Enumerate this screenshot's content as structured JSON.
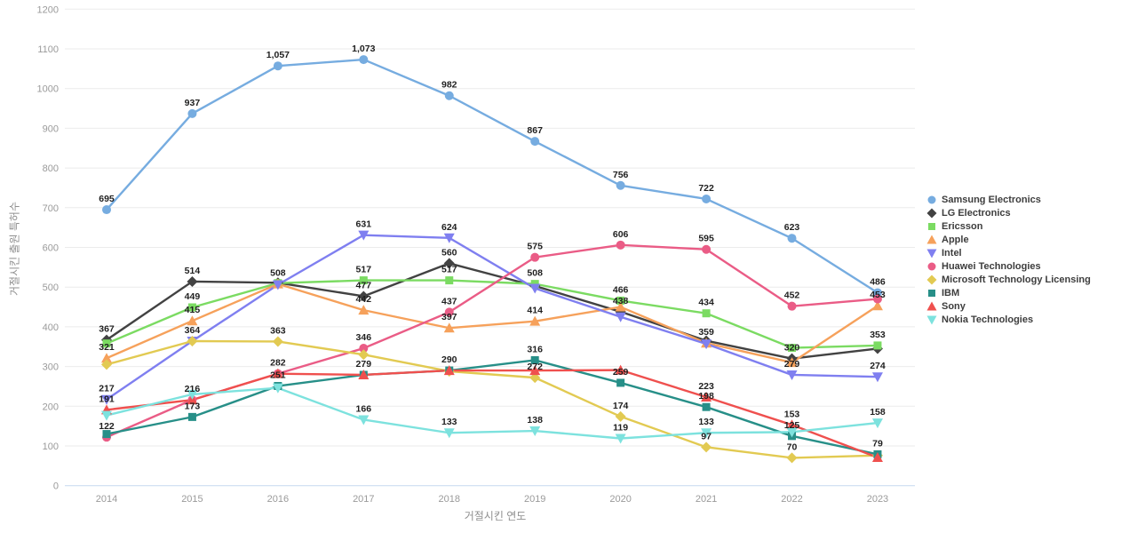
{
  "chart_data": {
    "type": "line",
    "title": "",
    "xlabel": "거절시킨 연도",
    "ylabel": "거절시킨 출원 특허수",
    "categories": [
      "2014",
      "2015",
      "2016",
      "2017",
      "2018",
      "2019",
      "2020",
      "2021",
      "2022",
      "2023"
    ],
    "ylim": [
      0,
      1200
    ],
    "ytick_step": 100,
    "grid": true,
    "legend_position": "right",
    "series": [
      {
        "name": "Samsung Electronics",
        "color": "#76ace0",
        "marker": "circle",
        "values": [
          695,
          937,
          1057,
          1073,
          982,
          867,
          756,
          722,
          623,
          486
        ],
        "labels": [
          "695",
          "937",
          "1,057",
          "1,073",
          "982",
          "867",
          "756",
          "722",
          "623",
          "486"
        ]
      },
      {
        "name": "LG Electronics",
        "color": "#424242",
        "marker": "diamond",
        "values": [
          367,
          514,
          511,
          477,
          560,
          503,
          438,
          365,
          320,
          345
        ],
        "labels": [
          "367",
          "514",
          null,
          "477",
          "560",
          null,
          "438",
          null,
          "320",
          null
        ]
      },
      {
        "name": "Ericsson",
        "color": "#7bdb62",
        "marker": "square",
        "values": [
          358,
          449,
          510,
          517,
          517,
          508,
          466,
          434,
          347,
          353
        ],
        "labels": [
          null,
          "449",
          null,
          "517",
          "517",
          "508",
          "466",
          "434",
          null,
          "353"
        ]
      },
      {
        "name": "Apple",
        "color": "#f6a15b",
        "marker": "triangle-up",
        "values": [
          321,
          415,
          508,
          442,
          397,
          414,
          450,
          359,
          310,
          453
        ],
        "labels": [
          "321",
          "415",
          "508",
          "442",
          "397",
          "414",
          null,
          "359",
          null,
          "453"
        ]
      },
      {
        "name": "Intel",
        "color": "#7f7ff0",
        "marker": "triangle-down",
        "values": [
          217,
          364,
          506,
          631,
          624,
          497,
          425,
          357,
          279,
          274
        ],
        "labels": [
          "217",
          null,
          null,
          "631",
          "624",
          null,
          null,
          null,
          "279",
          "274"
        ]
      },
      {
        "name": "Huawei Technologies",
        "color": "#ea5c86",
        "marker": "circle",
        "values": [
          122,
          216,
          282,
          346,
          437,
          575,
          606,
          595,
          452,
          470
        ],
        "labels": [
          "122",
          "216",
          "282",
          "346",
          "437",
          "575",
          "606",
          "595",
          "452",
          null
        ]
      },
      {
        "name": "Microsoft Technology Licensing",
        "color": "#e2ca52",
        "marker": "diamond",
        "values": [
          305,
          364,
          363,
          330,
          288,
          272,
          174,
          97,
          70,
          76
        ],
        "labels": [
          null,
          "364",
          "363",
          null,
          null,
          "272",
          "174",
          "97",
          "70",
          null
        ]
      },
      {
        "name": "IBM",
        "color": "#278f88",
        "marker": "square",
        "values": [
          130,
          173,
          251,
          279,
          290,
          316,
          259,
          198,
          125,
          79
        ],
        "labels": [
          null,
          "173",
          "251",
          "279",
          "290",
          "316",
          "259",
          "198",
          "125",
          "79"
        ]
      },
      {
        "name": "Sony",
        "color": "#ef504e",
        "marker": "triangle-up",
        "values": [
          191,
          216,
          282,
          279,
          290,
          290,
          291,
          223,
          153,
          71
        ],
        "labels": [
          "191",
          null,
          null,
          null,
          null,
          null,
          null,
          "223",
          "153",
          null
        ]
      },
      {
        "name": "Nokia Technologies",
        "color": "#7de2de",
        "marker": "triangle-down",
        "values": [
          177,
          230,
          246,
          166,
          133,
          138,
          119,
          133,
          135,
          158
        ],
        "labels": [
          null,
          null,
          null,
          "166",
          "133",
          "138",
          "119",
          "133",
          null,
          "158"
        ]
      }
    ],
    "style": {
      "grid_color": "#ebebeb",
      "zero_line_color": "#c6d9ef",
      "tick_color": "#9a9a9a",
      "point_label_color": "#1f1f1f"
    }
  }
}
